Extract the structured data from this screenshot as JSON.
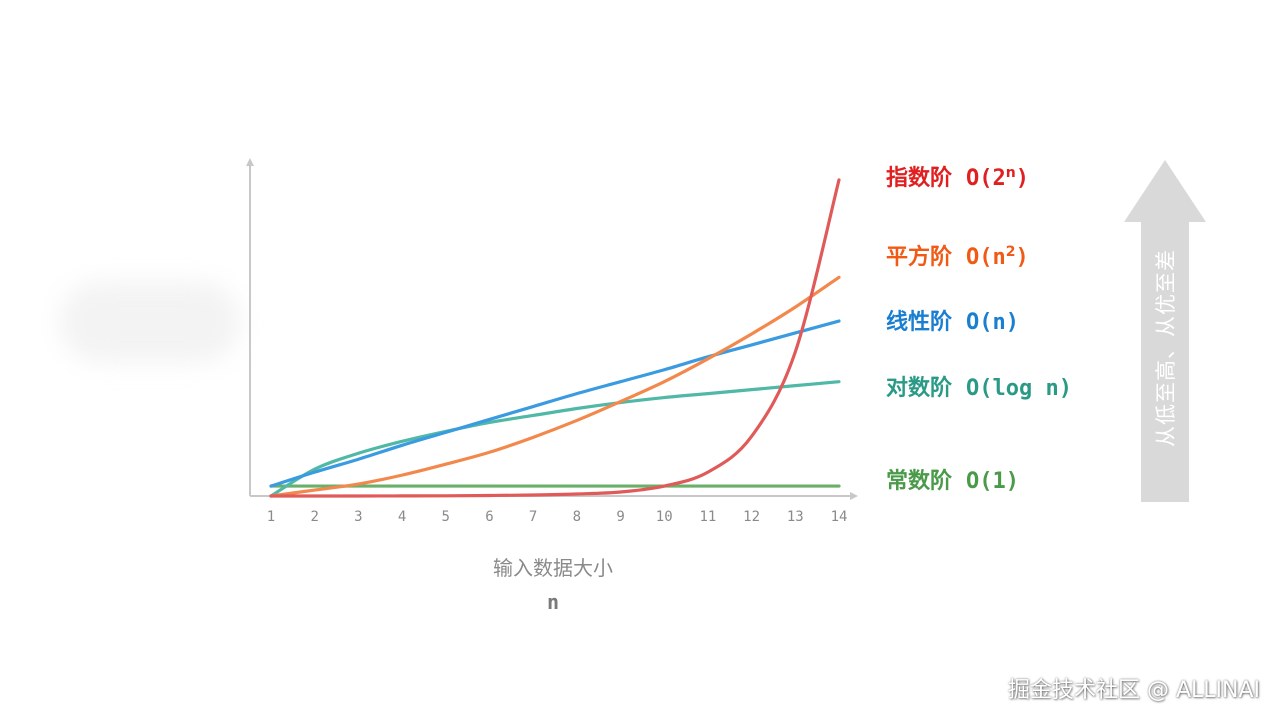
{
  "chart_data": {
    "type": "line",
    "x": [
      1,
      2,
      3,
      4,
      5,
      6,
      7,
      8,
      9,
      10,
      11,
      12,
      13,
      14
    ],
    "xlabel": "输入数据大小",
    "xvar": "n",
    "grid": false,
    "legend_placement": "right",
    "series": [
      {
        "key": "exponential",
        "name_cn": "指数阶",
        "name_big_o": "O(2",
        "superscript": "n",
        "name_tail": ")",
        "color": "#e05a5a",
        "label_color": "#e02020",
        "values": [
          0.0,
          0.0,
          0.0,
          0.1,
          0.2,
          0.5,
          1.0,
          2.0,
          4.0,
          10.0,
          24.0,
          60.0,
          145.0,
          318.0
        ]
      },
      {
        "key": "quadratic",
        "name_cn": "平方阶",
        "name_big_o": "O(n",
        "superscript": "2",
        "name_tail": ")",
        "color": "#f2884b",
        "label_color": "#f05a14",
        "values": [
          0.0,
          6.0,
          12.0,
          21.0,
          32.0,
          44.0,
          59.0,
          76.0,
          95.0,
          115.0,
          138.0,
          163.0,
          190.0,
          220.0
        ]
      },
      {
        "key": "linear",
        "name_cn": "线性阶",
        "name_big_o": "O(n)",
        "superscript": "",
        "name_tail": "",
        "color": "#3a9be0",
        "label_color": "#1a7fd0",
        "values": [
          10.0,
          24.0,
          37.0,
          51.0,
          64.0,
          77.0,
          90.0,
          103.0,
          115.0,
          127.0,
          140.0,
          152.0,
          164.0,
          176.0
        ]
      },
      {
        "key": "logarithmic",
        "name_cn": "对数阶",
        "name_big_o": "O(log n)",
        "superscript": "",
        "name_tail": "",
        "color": "#4fb8a6",
        "label_color": "#2a9a86",
        "values": [
          0.0,
          27.0,
          43.0,
          55.0,
          65.0,
          74.0,
          81.0,
          88.0,
          94.0,
          99.0,
          103.0,
          107.0,
          111.0,
          115.0
        ]
      },
      {
        "key": "constant",
        "name_cn": "常数阶",
        "name_big_o": "O(1)",
        "superscript": "",
        "name_tail": "",
        "color": "#6ab06a",
        "label_color": "#4a9a4a",
        "values": [
          10.0,
          10.0,
          10.0,
          10.0,
          10.0,
          10.0,
          10.0,
          10.0,
          10.0,
          10.0,
          10.0,
          10.0,
          10.0,
          10.0
        ]
      }
    ],
    "ylim": [
      0,
      340
    ]
  },
  "side_arrow": {
    "text": "从低至高、从优至差",
    "color": "#d9d9d9"
  },
  "watermark": "掘金技术社区 @ ALLINAI",
  "colors": {
    "axis": "#c8c8c8",
    "tick_text": "#8a8a8a"
  }
}
